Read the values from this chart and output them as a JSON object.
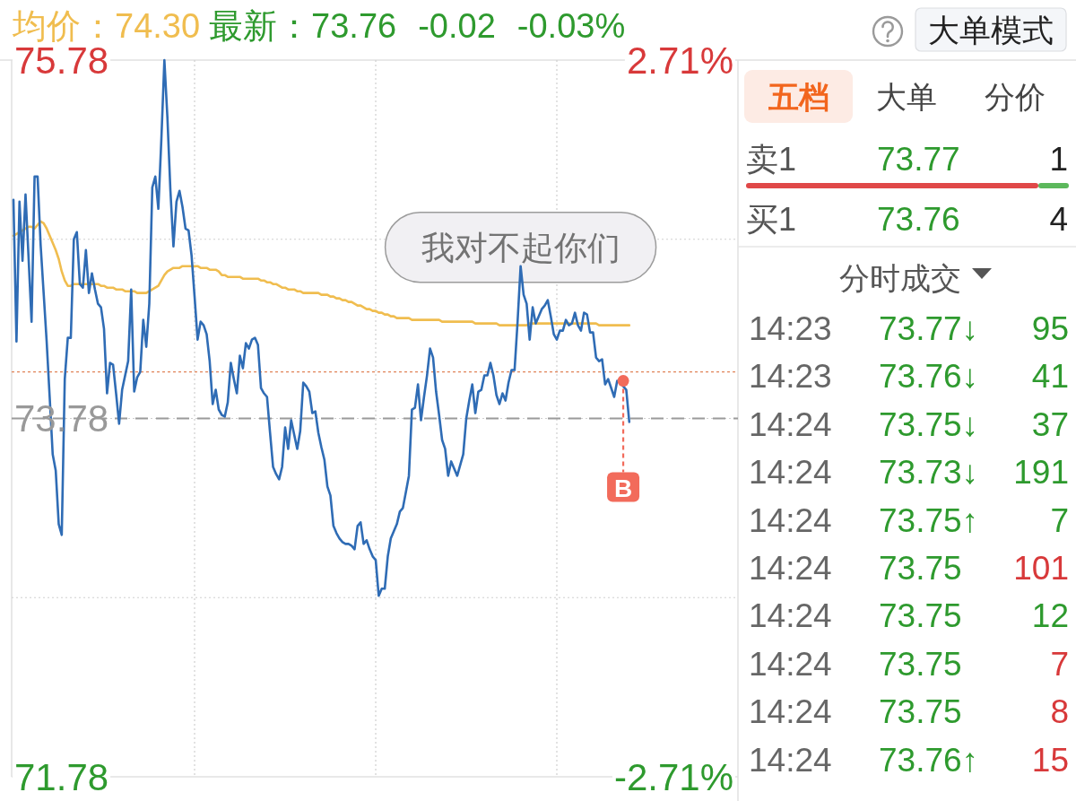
{
  "chart_data": [
    {
      "type": "line",
      "categories": [
        null,
        null,
        null,
        null,
        null,
        null,
        null,
        null,
        null,
        null,
        null,
        null,
        null,
        null,
        null,
        null,
        null,
        null,
        null,
        null,
        null,
        null,
        null,
        null,
        null,
        null,
        null,
        null,
        null,
        null,
        null,
        null,
        null,
        null,
        null,
        null,
        null,
        null,
        null,
        null,
        null,
        null,
        null,
        null,
        null,
        null,
        null,
        null,
        null,
        null,
        null,
        null,
        null,
        null,
        null,
        null,
        null,
        null,
        null,
        null,
        null,
        null,
        null,
        null,
        null,
        null,
        null,
        null,
        null,
        null,
        null,
        null,
        null,
        null,
        null,
        null,
        null,
        null,
        null,
        null,
        null,
        null,
        null,
        null,
        null,
        null,
        null,
        null,
        null,
        null,
        null,
        null,
        null,
        null,
        null,
        null,
        null,
        null,
        null,
        null,
        null,
        null,
        null,
        null,
        null,
        null,
        null,
        null,
        null,
        null,
        null,
        null,
        null,
        null,
        null,
        null,
        null,
        null,
        null,
        null,
        null,
        null,
        null,
        null,
        null,
        null,
        null,
        null,
        null,
        null,
        null,
        null,
        null,
        null,
        null,
        null,
        null,
        null,
        null,
        null,
        null,
        null,
        null,
        null,
        null,
        null,
        null,
        null,
        null,
        null,
        null,
        null,
        null,
        null,
        null,
        null,
        null,
        null,
        null,
        null,
        null,
        null,
        null,
        null,
        null,
        null,
        null,
        null,
        null,
        null,
        null,
        null,
        null,
        null,
        null,
        null,
        null,
        null,
        null,
        null,
        null,
        null,
        null,
        null,
        null,
        null,
        null,
        null,
        null,
        null,
        null,
        null,
        null,
        null,
        null,
        null,
        null,
        null,
        null,
        null,
        null,
        null,
        null,
        null,
        null,
        null,
        null,
        null,
        null,
        null,
        null,
        null,
        null,
        null,
        null,
        null,
        null,
        null,
        null,
        null,
        null,
        null,
        null,
        null,
        null,
        null,
        null,
        null,
        null,
        null,
        null,
        null,
        null,
        null,
        null,
        null,
        null,
        null,
        null,
        null,
        null
      ],
      "series": [
        {
          "name": "均价：74.30",
          "color": "#f0bd4f",
          "values": [
            74.8,
            74.81,
            74.82,
            74.83,
            74.84,
            74.85,
            74.85,
            74.84,
            74.86,
            74.88,
            74.87,
            74.84,
            74.8,
            74.76,
            74.72,
            74.67,
            74.6,
            74.55,
            74.52,
            74.52,
            74.53,
            74.53,
            74.53,
            74.53,
            74.53,
            74.53,
            74.53,
            74.53,
            74.53,
            74.52,
            74.52,
            74.51,
            74.51,
            74.51,
            74.5,
            74.5,
            74.5,
            74.49,
            74.49,
            74.49,
            74.49,
            74.48,
            74.48,
            74.48,
            74.48,
            74.49,
            74.5,
            74.51,
            74.52,
            74.55,
            74.58,
            74.6,
            74.61,
            74.62,
            74.62,
            74.62,
            74.63,
            74.63,
            74.63,
            74.63,
            74.63,
            74.63,
            74.62,
            74.62,
            74.62,
            74.61,
            74.61,
            74.61,
            74.6,
            74.58,
            74.58,
            74.57,
            74.57,
            74.57,
            74.57,
            74.57,
            74.56,
            74.56,
            74.56,
            74.56,
            74.56,
            74.56,
            74.55,
            74.55,
            74.54,
            74.54,
            74.53,
            74.53,
            74.52,
            74.51,
            74.51,
            74.5,
            74.5,
            74.5,
            74.49,
            74.49,
            74.48,
            74.48,
            74.48,
            74.48,
            74.48,
            74.48,
            74.47,
            74.47,
            74.47,
            74.46,
            74.46,
            74.45,
            74.45,
            74.44,
            74.44,
            74.43,
            74.43,
            74.42,
            74.41,
            74.41,
            74.4,
            74.39,
            74.39,
            74.38,
            74.38,
            74.37,
            74.37,
            74.36,
            74.36,
            74.35,
            74.35,
            74.34,
            74.34,
            74.34,
            74.34,
            74.34,
            74.33,
            74.33,
            74.33,
            74.33,
            74.33,
            74.33,
            74.33,
            74.33,
            74.33,
            74.33,
            74.32,
            74.32,
            74.32,
            74.32,
            74.32,
            74.32,
            74.32,
            74.32,
            74.32,
            74.32,
            74.32,
            74.31,
            74.31,
            74.31,
            74.31,
            74.31,
            74.31,
            74.31,
            74.31,
            74.3,
            74.3,
            74.3,
            74.3,
            74.3,
            74.3,
            74.3,
            74.3,
            74.3,
            74.3,
            74.31,
            74.31,
            74.31,
            74.31,
            74.31,
            74.31,
            74.31,
            74.31,
            74.31,
            74.31,
            74.31,
            74.31,
            74.31,
            74.31,
            74.31,
            74.31,
            74.31,
            74.31,
            74.31,
            74.31,
            74.31,
            74.31,
            74.31,
            74.3,
            74.3,
            74.3,
            74.3,
            74.3,
            74.3,
            74.3,
            74.3,
            74.3,
            74.3,
            74.3,
            null,
            null,
            null,
            null,
            null,
            null,
            null,
            null,
            null,
            null,
            null,
            null,
            null,
            null,
            null,
            null,
            null,
            null,
            null,
            null,
            null,
            null,
            null,
            null,
            null,
            null,
            null,
            null,
            null,
            null,
            null,
            null,
            null,
            null,
            null,
            null
          ]
        },
        {
          "color": "#2f6cb5",
          "values": [
            75.0,
            74.21,
            74.99,
            74.66,
            75.03,
            74.68,
            74.32,
            75.13,
            75.13,
            74.75,
            74.48,
            74.21,
            73.9,
            73.58,
            73.49,
            73.19,
            73.13,
            74.0,
            74.23,
            74.23,
            74.78,
            74.82,
            74.53,
            74.51,
            74.72,
            74.48,
            74.59,
            74.5,
            74.42,
            74.4,
            74.28,
            73.92,
            74.09,
            74.08,
            73.92,
            73.75,
            73.94,
            74.02,
            74.1,
            74.5,
            73.93,
            74.01,
            74.04,
            74.33,
            74.18,
            74.42,
            75.07,
            75.13,
            74.95,
            75.34,
            75.78,
            75.46,
            75.05,
            74.74,
            74.99,
            75.05,
            74.96,
            74.84,
            74.83,
            74.69,
            74.46,
            74.22,
            74.32,
            74.3,
            74.25,
            74.1,
            73.86,
            73.94,
            73.83,
            73.8,
            73.79,
            73.87,
            74.09,
            74.0,
            73.92,
            74.13,
            74.06,
            74.2,
            74.17,
            74.22,
            74.23,
            74.19,
            73.95,
            73.92,
            73.9,
            73.7,
            73.51,
            73.47,
            73.44,
            73.51,
            73.73,
            73.61,
            73.77,
            73.69,
            73.61,
            73.71,
            73.98,
            73.96,
            73.93,
            73.81,
            73.82,
            73.7,
            73.62,
            73.55,
            73.4,
            73.35,
            73.18,
            73.14,
            73.11,
            73.09,
            73.08,
            73.08,
            73.07,
            73.05,
            73.18,
            73.2,
            73.08,
            73.1,
            73.05,
            73.01,
            72.99,
            72.79,
            72.83,
            72.83,
            73.01,
            73.11,
            73.15,
            73.19,
            73.26,
            73.28,
            73.37,
            73.46,
            73.83,
            73.84,
            73.97,
            73.77,
            73.9,
            74.02,
            74.17,
            74.12,
            73.93,
            73.8,
            73.66,
            73.61,
            73.46,
            73.54,
            73.5,
            73.46,
            73.52,
            73.58,
            73.78,
            73.88,
            73.97,
            73.81,
            73.93,
            73.94,
            74.02,
            74.02,
            74.09,
            74.02,
            73.91,
            73.86,
            73.92,
            73.88,
            73.98,
            74.05,
            74.05,
            74.32,
            74.63,
            74.47,
            74.42,
            74.22,
            74.4,
            74.31,
            74.35,
            74.39,
            74.41,
            74.44,
            74.35,
            74.25,
            74.22,
            74.27,
            74.27,
            74.33,
            74.3,
            74.31,
            74.37,
            74.3,
            74.27,
            74.37,
            74.36,
            74.26,
            74.26,
            74.12,
            74.1,
            74.11,
            73.97,
            74.0,
            73.95,
            73.9,
            73.99,
            73.98,
            73.96,
            73.94,
            73.76,
            null,
            null,
            null,
            null,
            null,
            null,
            null,
            null,
            null,
            null,
            null,
            null,
            null,
            null,
            null,
            null,
            null,
            null,
            null,
            null,
            null,
            null,
            null,
            null,
            null,
            null,
            null,
            null,
            null,
            null,
            null,
            null,
            null,
            null,
            null,
            null
          ]
        },
        {
          "type": "scatter",
          "name": "B",
          "color": "#f26b5b",
          "values": [
            null,
            null,
            null,
            null,
            null,
            null,
            null,
            null,
            null,
            null,
            null,
            null,
            null,
            null,
            null,
            null,
            null,
            null,
            null,
            null,
            null,
            null,
            null,
            null,
            null,
            null,
            null,
            null,
            null,
            null,
            null,
            null,
            null,
            null,
            null,
            null,
            null,
            null,
            null,
            null,
            null,
            null,
            null,
            null,
            null,
            null,
            null,
            null,
            null,
            null,
            null,
            null,
            null,
            null,
            null,
            null,
            null,
            null,
            null,
            null,
            null,
            null,
            null,
            null,
            null,
            null,
            null,
            null,
            null,
            null,
            null,
            null,
            null,
            null,
            null,
            null,
            null,
            null,
            null,
            null,
            null,
            null,
            null,
            null,
            null,
            null,
            null,
            null,
            null,
            null,
            null,
            null,
            null,
            null,
            null,
            null,
            null,
            null,
            null,
            null,
            null,
            null,
            null,
            null,
            null,
            null,
            null,
            null,
            null,
            null,
            null,
            null,
            null,
            null,
            null,
            null,
            null,
            null,
            null,
            null,
            null,
            null,
            null,
            null,
            null,
            null,
            null,
            null,
            null,
            null,
            null,
            null,
            null,
            null,
            null,
            null,
            null,
            null,
            null,
            null,
            null,
            null,
            null,
            null,
            null,
            null,
            null,
            null,
            null,
            null,
            null,
            null,
            null,
            null,
            null,
            null,
            null,
            null,
            null,
            null,
            null,
            null,
            null,
            null,
            null,
            null,
            null,
            null,
            null,
            null,
            null,
            null,
            null,
            null,
            null,
            null,
            null,
            null,
            null,
            null,
            null,
            null,
            null,
            null,
            null,
            null,
            null,
            null,
            null,
            null,
            null,
            null,
            null,
            null,
            null,
            null,
            null,
            null,
            null,
            null,
            null,
            null,
            73.99,
            null,
            null,
            null,
            null,
            null,
            null,
            null,
            null,
            null,
            null,
            null,
            null,
            null,
            null,
            null,
            null,
            null,
            null,
            null,
            null,
            null,
            null,
            null,
            null,
            null,
            null,
            null,
            null,
            null,
            null,
            null,
            null,
            null,
            null,
            null,
            null,
            null,
            null
          ]
        }
      ],
      "ylim": [
        71.78,
        75.78
      ],
      "yticks": [
        71.78,
        {
          "value": 72.78,
          "label": null
        },
        73.78,
        {
          "value": 74.78,
          "label": null
        },
        75.78
      ],
      "y2lim": [
        -2.71,
        2.71
      ],
      "y2ticks": [
        {
          "value": -2.71,
          "label": "-2.71%"
        },
        {
          "value": 2.71,
          "label": "2.71%"
        }
      ],
      "grid": true,
      "ref_lines": [
        {
          "axis": "y",
          "value": 73.78,
          "color": "#9a9a9a",
          "line_style": "dashed"
        },
        {
          "axis": "y",
          "value": 74.04,
          "color": "#e0845a",
          "line_style": "dotted"
        }
      ],
      "annotations": [
        "最新：73.76",
        "-0.02",
        "-0.03%",
        {
          "text": "我对不起你们",
          "y": 74.63
        }
      ]
    },
    {
      "type": "other",
      "annotations": [
        "大单模式",
        "五档",
        "大单",
        "分价",
        "卖1",
        "73.77",
        "1",
        "买1",
        "73.76",
        "4",
        "分时成交",
        "14:23",
        "73.77↓",
        "95",
        "14:23",
        "73.76↓",
        "41",
        "14:24",
        "73.75↓",
        "37",
        "14:24",
        "73.73↓",
        "191",
        "14:24",
        "73.75↑",
        "7",
        "14:24",
        "73.75",
        "101",
        "14:24",
        "73.75",
        "12",
        "14:24",
        "73.75",
        "7",
        "14:24",
        "73.75",
        "8",
        "14:24",
        "73.76↑",
        "15"
      ]
    }
  ]
}
